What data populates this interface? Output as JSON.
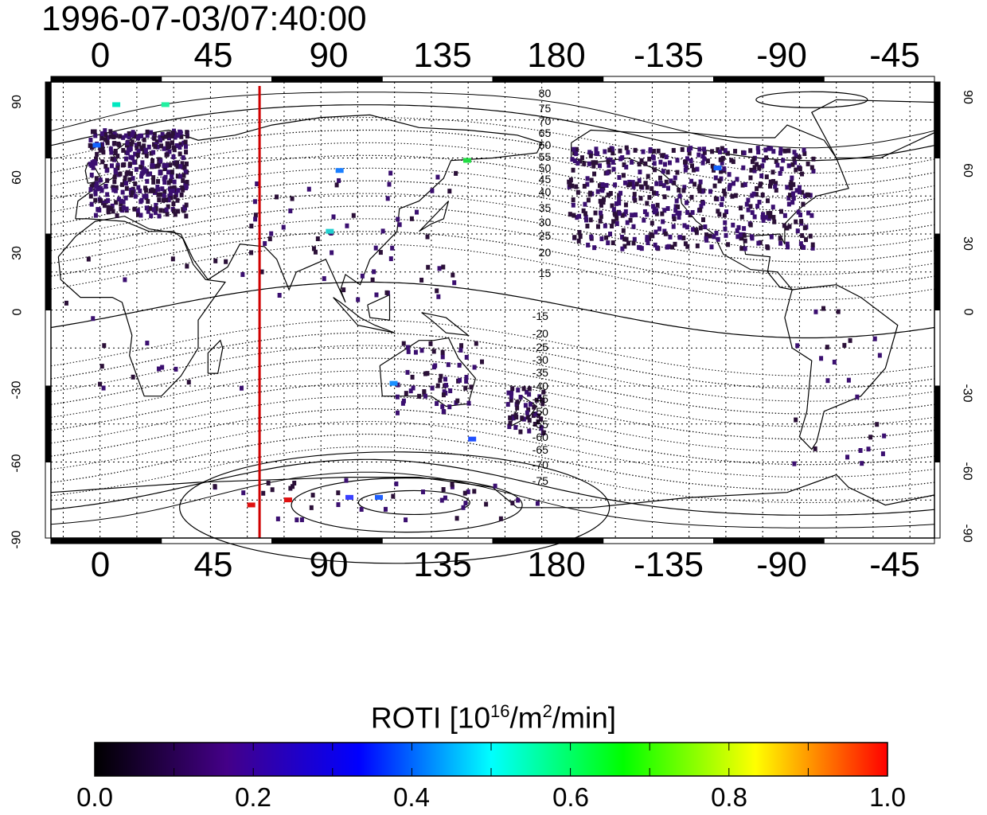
{
  "timestamp": "1996-07-03/07:40:00",
  "top_lon_ticks": [
    "0",
    "45",
    "90",
    "135",
    "180",
    "-135",
    "-90",
    "-45"
  ],
  "bottom_lon_ticks": [
    "0",
    "45",
    "90",
    "135",
    "180",
    "-135",
    "-90",
    "-45"
  ],
  "left_lat_ticks": [
    "90",
    "60",
    "30",
    "0",
    "-30",
    "-60",
    "-90"
  ],
  "right_lat_ticks": [
    "90",
    "60",
    "30",
    "0",
    "-30",
    "-60",
    "-90"
  ],
  "map": {
    "projection": "equirectangular",
    "lon_range": [
      -20,
      340
    ],
    "lat_range": [
      -90,
      90
    ],
    "grid": true,
    "marker_line": {
      "lon": 65,
      "color": "#d00000"
    },
    "contour_labels_north": [
      "80",
      "75",
      "70",
      "65",
      "60",
      "55",
      "50",
      "45",
      "40",
      "35",
      "30",
      "25",
      "20",
      "15"
    ],
    "contour_labels_south": [
      "-15",
      "-20",
      "-25",
      "-30",
      "-35",
      "-40",
      "-45",
      "-50",
      "-55",
      "-60",
      "-65",
      "-70",
      "-75"
    ],
    "contour_label_lon": 180
  },
  "colorbar": {
    "title_prefix": "ROTI  [10",
    "title_sup1": "16",
    "title_mid": "/m",
    "title_sup2": "2",
    "title_suffix": "/min]",
    "min": 0.0,
    "max": 1.0,
    "tick_labels": [
      "0.0",
      "0.2",
      "0.4",
      "0.6",
      "0.8",
      "1.0"
    ],
    "colors": [
      "#000000",
      "#440088",
      "#0000ff",
      "#00ffff",
      "#00ff00",
      "#ffff00",
      "#ff0000"
    ]
  }
}
